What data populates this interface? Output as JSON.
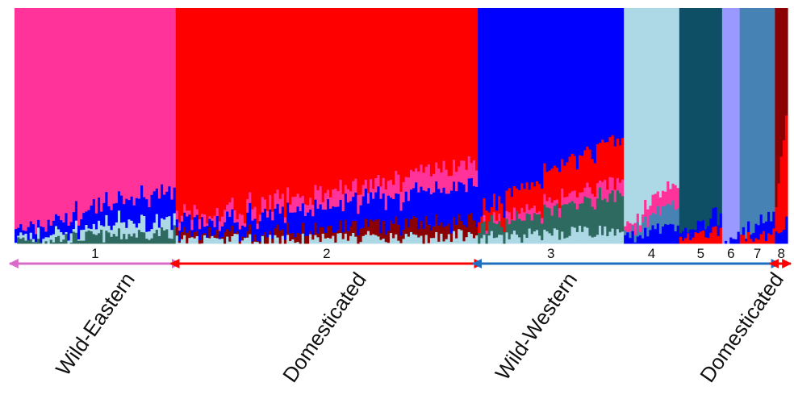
{
  "chart_data": {
    "type": "bar",
    "stacked": true,
    "description_note": "",
    "ylim": [
      0,
      1
    ],
    "cluster_colors": {
      "A": "#ff3399",
      "B": "#ff0000",
      "C": "#0000ff",
      "D": "#add8e6",
      "E": "#0f4f66",
      "F": "#2e6a60",
      "G": "#9999ff",
      "H": "#4682b4",
      "I": "#8b0000"
    },
    "groups": [
      {
        "id": "1",
        "label": "1",
        "individuals": 64
      },
      {
        "id": "2",
        "label": "2",
        "individuals": 120
      },
      {
        "id": "3",
        "label": "3",
        "individuals": 58
      },
      {
        "id": "4",
        "label": "4",
        "individuals": 22
      },
      {
        "id": "5",
        "label": "5",
        "individuals": 17
      },
      {
        "id": "6",
        "label": "6",
        "individuals": 7
      },
      {
        "id": "7",
        "label": "7",
        "individuals": 14
      },
      {
        "id": "8",
        "label": "8",
        "individuals": 5
      }
    ],
    "populations": [
      {
        "name": "Wild-Eastern",
        "clusters": [
          "1"
        ],
        "color": "#d86bc8"
      },
      {
        "name": "Domesticated",
        "clusters": [
          "2"
        ],
        "color": "#ff0000"
      },
      {
        "name": "Wild-Western",
        "clusters": [
          "3",
          "4",
          "5",
          "6",
          "7"
        ],
        "color": "#1f6fc0"
      },
      {
        "name": "Domesticated",
        "clusters": [
          "8"
        ],
        "color": "#ff0000"
      }
    ],
    "ancestry_profiles": {
      "1": [
        {
          "k": "A",
          "q": 0.85
        },
        {
          "k": "C",
          "q": 0.08
        },
        {
          "k": "D",
          "q": 0.04
        },
        {
          "k": "F",
          "q": 0.03
        }
      ],
      "2": [
        {
          "k": "B",
          "q": 0.78
        },
        {
          "k": "A",
          "q": 0.06
        },
        {
          "k": "C",
          "q": 0.1
        },
        {
          "k": "I",
          "q": 0.04
        },
        {
          "k": "D",
          "q": 0.02
        }
      ],
      "3": [
        {
          "k": "C",
          "q": 0.7
        },
        {
          "k": "B",
          "q": 0.12
        },
        {
          "k": "A",
          "q": 0.04
        },
        {
          "k": "F",
          "q": 0.1
        },
        {
          "k": "D",
          "q": 0.04
        }
      ],
      "4": [
        {
          "k": "D",
          "q": 0.84
        },
        {
          "k": "A",
          "q": 0.06
        },
        {
          "k": "H",
          "q": 0.05
        },
        {
          "k": "C",
          "q": 0.05
        }
      ],
      "5": [
        {
          "k": "E",
          "q": 0.93
        },
        {
          "k": "C",
          "q": 0.04
        },
        {
          "k": "B",
          "q": 0.03
        }
      ],
      "6": [
        {
          "k": "G",
          "q": 0.98
        },
        {
          "k": "C",
          "q": 0.02
        }
      ],
      "7": [
        {
          "k": "H",
          "q": 0.92
        },
        {
          "k": "C",
          "q": 0.05
        },
        {
          "k": "B",
          "q": 0.03
        }
      ],
      "8": [
        {
          "k": "I",
          "q": 0.64
        },
        {
          "k": "B",
          "q": 0.3
        },
        {
          "k": "C",
          "q": 0.06
        }
      ]
    }
  }
}
